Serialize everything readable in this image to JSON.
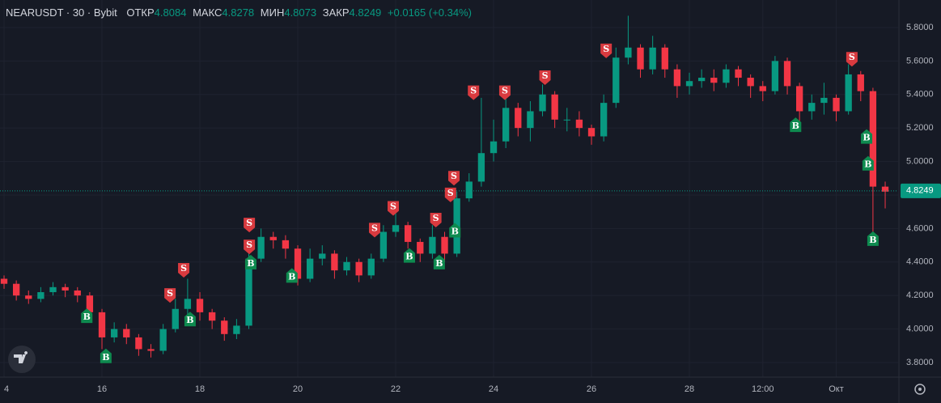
{
  "chart_data": {
    "type": "candlestick",
    "header": {
      "symbol": "NEARUSDT · 30 · Bybit",
      "open_label": "ОТКР",
      "open": 4.8084,
      "high_label": "МАКС",
      "high": 4.8278,
      "low_label": "МИН",
      "low": 4.8073,
      "close_label": "ЗАКР",
      "close": 4.8249,
      "change": "+0.0165 (+0.34%)"
    },
    "x": [
      14,
      14.25,
      14.5,
      14.75,
      15,
      15.25,
      15.5,
      15.75,
      16,
      16.25,
      16.5,
      16.75,
      17,
      17.25,
      17.5,
      17.75,
      18,
      18.25,
      18.5,
      18.75,
      19,
      19.25,
      19.5,
      19.75,
      20,
      20.25,
      20.5,
      20.75,
      21,
      21.25,
      21.5,
      21.75,
      22,
      22.25,
      22.5,
      22.75,
      23,
      23.25,
      23.5,
      23.75,
      24,
      24.25,
      24.5,
      24.75,
      25,
      25.25,
      25.5,
      25.75,
      26,
      26.25,
      26.5,
      26.75,
      27,
      27.25,
      27.5,
      27.75,
      28,
      28.25,
      28.5,
      28.75,
      29,
      29.25,
      29.5,
      29.75,
      30,
      30.25,
      30.5,
      30.75,
      31,
      31.25,
      31.5,
      31.75,
      32
    ],
    "open": [
      4.3,
      4.27,
      4.2,
      4.18,
      4.22,
      4.25,
      4.23,
      4.2,
      4.1,
      3.95,
      4.0,
      3.95,
      3.88,
      3.87,
      4.0,
      4.12,
      4.18,
      4.1,
      4.05,
      3.97,
      4.02,
      4.42,
      4.55,
      4.53,
      4.48,
      4.3,
      4.42,
      4.45,
      4.35,
      4.4,
      4.32,
      4.42,
      4.58,
      4.62,
      4.52,
      4.45,
      4.55,
      4.45,
      4.78,
      4.88,
      5.05,
      5.12,
      5.32,
      5.2,
      5.3,
      5.4,
      5.25,
      5.25,
      5.2,
      5.15,
      5.35,
      5.62,
      5.68,
      5.55,
      5.68,
      5.55,
      5.45,
      5.48,
      5.5,
      5.47,
      5.55,
      5.5,
      5.45,
      5.42,
      5.6,
      5.45,
      5.3,
      5.35,
      5.38,
      5.3,
      5.52,
      5.42,
      4.85
    ],
    "high": [
      4.32,
      4.29,
      4.23,
      4.25,
      4.28,
      4.27,
      4.25,
      4.22,
      4.12,
      4.04,
      4.03,
      3.97,
      3.91,
      4.03,
      4.18,
      4.3,
      4.22,
      4.12,
      4.07,
      4.06,
      4.46,
      4.6,
      4.58,
      4.56,
      4.5,
      4.48,
      4.5,
      4.47,
      4.43,
      4.42,
      4.45,
      4.62,
      4.69,
      4.64,
      4.54,
      4.62,
      4.58,
      4.82,
      4.93,
      5.38,
      5.25,
      5.38,
      5.35,
      5.36,
      5.46,
      5.42,
      5.32,
      5.3,
      5.22,
      5.4,
      5.68,
      5.87,
      5.7,
      5.75,
      5.7,
      5.58,
      5.53,
      5.55,
      5.55,
      5.58,
      5.57,
      5.52,
      5.48,
      5.63,
      5.62,
      5.47,
      5.4,
      5.47,
      5.4,
      5.58,
      5.54,
      5.44,
      4.88
    ],
    "low": [
      4.24,
      4.17,
      4.15,
      4.16,
      4.2,
      4.19,
      4.16,
      4.06,
      3.88,
      3.92,
      3.91,
      3.84,
      3.83,
      3.85,
      3.98,
      4.08,
      4.05,
      4.0,
      3.93,
      3.94,
      4.0,
      4.4,
      4.48,
      4.42,
      4.26,
      4.28,
      4.38,
      4.3,
      4.32,
      4.28,
      4.3,
      4.4,
      4.55,
      4.48,
      4.4,
      4.42,
      4.4,
      4.43,
      4.76,
      4.85,
      5.0,
      5.08,
      5.15,
      5.12,
      5.27,
      5.2,
      5.18,
      5.15,
      5.1,
      5.12,
      5.32,
      5.58,
      5.5,
      5.52,
      5.5,
      5.38,
      5.4,
      5.44,
      5.42,
      5.44,
      5.45,
      5.38,
      5.36,
      5.4,
      5.4,
      5.22,
      5.25,
      5.28,
      5.24,
      5.28,
      5.36,
      4.58,
      4.72
    ],
    "close": [
      4.27,
      4.2,
      4.18,
      4.22,
      4.25,
      4.23,
      4.2,
      4.1,
      3.95,
      4.0,
      3.95,
      3.88,
      3.87,
      4.0,
      4.12,
      4.18,
      4.1,
      4.05,
      3.97,
      4.02,
      4.42,
      4.55,
      4.53,
      4.48,
      4.3,
      4.42,
      4.45,
      4.35,
      4.4,
      4.32,
      4.42,
      4.58,
      4.62,
      4.52,
      4.45,
      4.55,
      4.45,
      4.78,
      4.88,
      5.05,
      5.12,
      5.32,
      5.2,
      5.3,
      5.4,
      5.25,
      5.25,
      5.2,
      5.15,
      5.35,
      5.62,
      5.68,
      5.55,
      5.68,
      5.55,
      5.45,
      5.48,
      5.5,
      5.47,
      5.55,
      5.5,
      5.45,
      5.42,
      5.6,
      5.45,
      5.3,
      5.35,
      5.38,
      5.3,
      5.52,
      5.42,
      4.85,
      4.82
    ],
    "up_color": "#089981",
    "down_color": "#f23645",
    "signals": [
      {
        "label": "B",
        "x": 15.69,
        "y": 4.07
      },
      {
        "label": "B",
        "x": 16.08,
        "y": 3.83
      },
      {
        "label": "B",
        "x": 17.8,
        "y": 4.05
      },
      {
        "label": "B",
        "x": 19.04,
        "y": 4.39
      },
      {
        "label": "B",
        "x": 19.88,
        "y": 4.31
      },
      {
        "label": "B",
        "x": 22.28,
        "y": 4.43
      },
      {
        "label": "B",
        "x": 22.89,
        "y": 4.39
      },
      {
        "label": "B",
        "x": 23.21,
        "y": 4.58
      },
      {
        "label": "B",
        "x": 30.17,
        "y": 5.21
      },
      {
        "label": "B",
        "x": 31.62,
        "y": 5.14
      },
      {
        "label": "B",
        "x": 31.65,
        "y": 4.98
      },
      {
        "label": "B",
        "x": 31.75,
        "y": 4.53
      },
      {
        "label": "S",
        "x": 17.39,
        "y": 4.21
      },
      {
        "label": "S",
        "x": 17.67,
        "y": 4.36
      },
      {
        "label": "S",
        "x": 19.01,
        "y": 4.63
      },
      {
        "label": "S",
        "x": 19.01,
        "y": 4.5
      },
      {
        "label": "S",
        "x": 21.57,
        "y": 4.6
      },
      {
        "label": "S",
        "x": 21.95,
        "y": 4.73
      },
      {
        "label": "S",
        "x": 22.82,
        "y": 4.66
      },
      {
        "label": "S",
        "x": 23.12,
        "y": 4.81
      },
      {
        "label": "S",
        "x": 23.19,
        "y": 4.91
      },
      {
        "label": "S",
        "x": 23.59,
        "y": 5.42
      },
      {
        "label": "S",
        "x": 24.23,
        "y": 5.42
      },
      {
        "label": "S",
        "x": 25.05,
        "y": 5.51
      },
      {
        "label": "S",
        "x": 26.3,
        "y": 5.67
      },
      {
        "label": "S",
        "x": 31.32,
        "y": 5.62
      }
    ],
    "buy_color": "#0e8a4f",
    "sell_color": "#d93a3f",
    "last_price": 4.8249,
    "xlim": [
      13.917,
      32.264
    ],
    "ylim": [
      3.713,
      5.964
    ],
    "xticks": [
      {
        "value": 14,
        "label": "4"
      },
      16,
      18,
      20,
      22,
      24,
      26,
      28,
      {
        "value": 29.5,
        "label": "12:00"
      },
      {
        "value": 31,
        "label": "Окт"
      }
    ],
    "yticks": [
      {
        "value": 3.8,
        "label": "3.8000"
      },
      {
        "value": 4,
        "label": "4.0000"
      },
      {
        "value": 4.2,
        "label": "4.2000"
      },
      {
        "value": 4.4,
        "label": "4.4000"
      },
      {
        "value": 4.6,
        "label": "4.6000"
      },
      {
        "value": 4.8,
        "label": "4.8000"
      },
      {
        "value": 5,
        "label": "5.0000"
      },
      {
        "value": 5.2,
        "label": "5.2000"
      },
      {
        "value": 5.4,
        "label": "5.4000"
      },
      {
        "value": 5.6,
        "label": "5.6000"
      },
      {
        "value": 5.8,
        "label": "5.8000"
      }
    ],
    "grid": true
  }
}
